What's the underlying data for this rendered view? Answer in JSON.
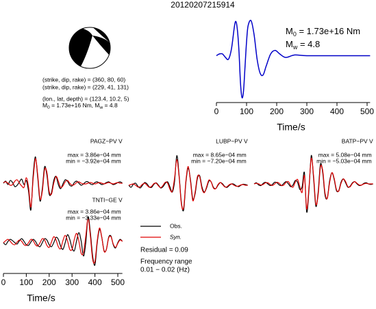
{
  "title": "20120207215914",
  "source_info": {
    "lines": [
      "(strike, dip, rake) = (360, 80, 60)",
      "(strike, dip, rake) = (229, 41, 131)",
      "(lon., lat, depth) = (123.4, 10.2, 5)"
    ],
    "moment_parts": [
      "M",
      "0",
      " = 1.73e+16 Nm, M",
      "w",
      " = 4.8"
    ]
  },
  "residual": "Residual = 0.09",
  "frequency": [
    "Frequency range",
    "0.01 − 0.02 (Hz)"
  ],
  "chart_data": [
    {
      "type": "line",
      "xlabel": "Time/s",
      "xlim": [
        0,
        510
      ],
      "xticks": [
        0,
        100,
        200,
        300,
        400,
        500
      ],
      "ylim": [
        -1.3,
        1.2
      ],
      "annotations": [
        {
          "symbol": "M",
          "subscript": "0",
          "text": " = 1.73e+16 Nm"
        },
        {
          "symbol": "M",
          "subscript": "w",
          "text": " = 4.8"
        }
      ],
      "x": [
        0,
        10,
        20,
        30,
        40,
        50,
        60,
        65,
        70,
        75,
        80,
        85,
        90,
        95,
        100,
        105,
        115,
        125,
        135,
        145,
        155,
        165,
        180,
        195,
        210,
        230,
        260,
        300,
        400,
        510
      ],
      "series": [
        {
          "color": "#0000c8",
          "values": [
            0,
            0.05,
            0.05,
            -0.05,
            -0.1,
            0.2,
            0.85,
            0.97,
            0.7,
            0.1,
            -0.8,
            -1.2,
            -1.0,
            -0.3,
            0.4,
            0.85,
            1.0,
            0.6,
            -0.1,
            -0.5,
            -0.55,
            -0.3,
            0.05,
            0.15,
            0.05,
            -0.05,
            0.02,
            0,
            0,
            0
          ]
        }
      ]
    },
    {
      "type": "line",
      "title": "PAGZ−PV V",
      "annotations": [
        "max = 3.86e−04 mm",
        "min = −3.92e−04 mm"
      ],
      "xlim": [
        0,
        520
      ],
      "ylim": [
        -4.5,
        4.5
      ],
      "x": [
        0,
        10,
        20,
        30,
        40,
        50,
        60,
        70,
        80,
        90,
        100,
        110,
        120,
        130,
        140,
        150,
        160,
        170,
        180,
        190,
        200,
        210,
        220,
        230,
        240,
        250,
        260,
        270,
        280,
        290,
        300,
        310,
        320,
        330,
        340,
        350,
        360,
        370,
        380,
        390,
        400,
        410,
        420,
        430,
        440,
        450,
        460,
        470,
        480,
        490,
        500,
        510,
        520
      ],
      "series": [
        {
          "color": "#000000",
          "values": [
            0.0,
            0.3,
            -0.2,
            0.4,
            0.1,
            -0.5,
            -0.3,
            0.2,
            0.6,
            -0.2,
            0.4,
            -1.2,
            -3.92,
            1.2,
            3.86,
            0.8,
            -2.6,
            -0.8,
            2.4,
            1.2,
            -1.6,
            -1.4,
            0.4,
            1.0,
            -0.2,
            -0.8,
            -0.1,
            0.5,
            0.3,
            -0.3,
            -0.4,
            0.1,
            0.3,
            0.0,
            -0.3,
            -0.1,
            0.2,
            0.2,
            -0.1,
            -0.2,
            0.1,
            0.2,
            0.0,
            -0.2,
            -0.1,
            0.1,
            0.2,
            0.0,
            -0.2,
            -0.1,
            0.1,
            0.2,
            0.0
          ]
        },
        {
          "color": "#e00000",
          "values": [
            0.1,
            0.2,
            0.0,
            -0.3,
            -0.2,
            0.3,
            0.5,
            0.0,
            -0.4,
            -0.6,
            0.8,
            -0.6,
            -3.5,
            0.6,
            3.6,
            1.2,
            -2.3,
            -1.2,
            2.0,
            1.6,
            -1.2,
            -1.6,
            0.0,
            1.0,
            0.3,
            -0.6,
            -0.4,
            0.2,
            0.4,
            0.0,
            -0.3,
            -0.2,
            0.1,
            0.2,
            0.0,
            -0.1,
            -0.1,
            0.0,
            0.1,
            0.0,
            -0.1,
            0.0,
            0.1,
            0.0,
            -0.1,
            0.0,
            0.1,
            0.0,
            -0.1,
            0.0,
            0.1,
            0.0,
            0.0
          ]
        }
      ]
    },
    {
      "type": "line",
      "title": "LUBP−PV V",
      "annotations": [
        "max = 8.65e−04 mm",
        "min = −7.20e−04 mm"
      ],
      "xlim": [
        0,
        520
      ],
      "ylim": [
        -9,
        9
      ],
      "x": [
        0,
        10,
        20,
        30,
        40,
        50,
        60,
        70,
        80,
        90,
        100,
        110,
        120,
        130,
        140,
        150,
        160,
        170,
        180,
        190,
        200,
        210,
        220,
        230,
        240,
        250,
        260,
        270,
        280,
        290,
        300,
        310,
        320,
        330,
        340,
        350,
        360,
        370,
        380,
        390,
        400,
        410,
        420,
        430,
        440,
        450,
        460,
        470,
        480,
        490,
        500,
        510,
        520
      ],
      "series": [
        {
          "color": "#000000",
          "values": [
            0.0,
            -0.6,
            0.3,
            0.6,
            -0.3,
            -0.8,
            0.0,
            0.8,
            0.4,
            -0.5,
            -0.6,
            0.3,
            0.7,
            0.0,
            -0.8,
            -0.4,
            0.6,
            1.0,
            -0.5,
            -2.0,
            1.0,
            8.65,
            3.0,
            -5.0,
            -7.2,
            1.0,
            5.0,
            1.5,
            -4.0,
            -2.5,
            2.0,
            2.8,
            -0.5,
            -2.0,
            -0.8,
            1.2,
            1.0,
            -0.6,
            -1.0,
            0.0,
            0.8,
            0.4,
            -0.4,
            -0.6,
            0.0,
            0.4,
            0.3,
            -0.2,
            -0.4,
            0.0,
            0.3,
            0.2,
            0.0
          ]
        },
        {
          "color": "#e00000",
          "values": [
            0.0,
            0.2,
            0.4,
            0.0,
            -0.5,
            -0.4,
            0.3,
            0.6,
            0.0,
            -0.6,
            -0.3,
            0.5,
            0.6,
            -0.2,
            -0.7,
            0.0,
            0.9,
            0.6,
            -1.2,
            -1.8,
            2.0,
            7.5,
            2.5,
            -5.5,
            -6.5,
            1.5,
            5.5,
            1.0,
            -4.5,
            -2.0,
            2.5,
            2.5,
            -1.0,
            -2.2,
            -0.5,
            1.5,
            1.0,
            -0.8,
            -1.0,
            0.2,
            0.8,
            0.2,
            -0.5,
            -0.4,
            0.2,
            0.4,
            0.0,
            -0.3,
            -0.2,
            0.1,
            0.2,
            0.0,
            0.0
          ]
        }
      ]
    },
    {
      "type": "line",
      "title": "BATP−PV V",
      "annotations": [
        "max = 5.08e−04 mm",
        "min = −5.03e−04 mm"
      ],
      "xlim": [
        0,
        520
      ],
      "ylim": [
        -5.5,
        5.5
      ],
      "x": [
        0,
        10,
        20,
        30,
        40,
        50,
        60,
        70,
        80,
        90,
        100,
        110,
        120,
        130,
        140,
        150,
        160,
        170,
        180,
        190,
        200,
        210,
        220,
        230,
        240,
        250,
        260,
        270,
        280,
        290,
        300,
        310,
        320,
        330,
        340,
        350,
        360,
        370,
        380,
        390,
        400,
        410,
        420,
        430,
        440,
        450,
        460,
        470,
        480,
        490,
        500,
        510,
        520
      ],
      "series": [
        {
          "color": "#000000",
          "values": [
            0.0,
            0.2,
            -0.2,
            -0.3,
            0.1,
            0.3,
            0.0,
            -0.3,
            -0.1,
            0.3,
            0.2,
            -0.2,
            -0.3,
            0.1,
            0.4,
            0.0,
            -0.5,
            -0.2,
            0.6,
            0.3,
            -1.0,
            -0.5,
            2.0,
            -5.03,
            -1.0,
            5.08,
            1.0,
            -4.0,
            -1.5,
            3.5,
            2.0,
            -2.0,
            -2.5,
            0.5,
            2.0,
            0.8,
            -1.2,
            -1.2,
            0.3,
            0.9,
            0.2,
            -0.6,
            -0.4,
            0.2,
            0.4,
            0.0,
            -0.3,
            -0.2,
            0.1,
            0.2,
            0.0,
            -0.1,
            0.0
          ]
        },
        {
          "color": "#e00000",
          "values": [
            0.0,
            0.1,
            0.0,
            -0.2,
            -0.1,
            0.2,
            0.2,
            -0.1,
            -0.3,
            0.0,
            0.3,
            0.1,
            -0.3,
            -0.2,
            0.3,
            0.4,
            -0.3,
            -0.6,
            0.3,
            0.8,
            -0.5,
            -1.5,
            1.5,
            -4.5,
            -0.5,
            4.6,
            1.5,
            -3.6,
            -2.0,
            3.0,
            2.4,
            -1.6,
            -2.6,
            0.2,
            2.0,
            1.0,
            -1.0,
            -1.3,
            0.1,
            0.9,
            0.4,
            -0.5,
            -0.5,
            0.1,
            0.4,
            0.1,
            -0.2,
            -0.2,
            0.0,
            0.1,
            0.0,
            0.0,
            0.0
          ]
        }
      ]
    },
    {
      "type": "line",
      "title": "TNTI−GE V",
      "annotations": [
        "max = 3.86e−04 mm",
        "min = −3.33e−04 mm"
      ],
      "xlabel": "Time/s",
      "xlim": [
        0,
        520
      ],
      "xticks": [
        0,
        100,
        200,
        300,
        400,
        500
      ],
      "ylim": [
        -4.2,
        4.2
      ],
      "x": [
        0,
        10,
        20,
        30,
        40,
        50,
        60,
        70,
        80,
        90,
        100,
        110,
        120,
        130,
        140,
        150,
        160,
        170,
        180,
        190,
        200,
        210,
        220,
        230,
        240,
        250,
        260,
        270,
        280,
        290,
        300,
        310,
        320,
        330,
        340,
        350,
        360,
        370,
        380,
        390,
        400,
        410,
        420,
        430,
        440,
        450,
        460,
        470,
        480,
        490,
        500,
        510,
        520
      ],
      "series": [
        {
          "name": "Obs.",
          "color": "#000000",
          "values": [
            0.0,
            -0.3,
            0.2,
            0.5,
            0.3,
            0.0,
            -0.2,
            0.3,
            0.6,
            0.2,
            -0.3,
            -0.4,
            0.1,
            0.5,
            0.2,
            -0.4,
            -0.6,
            0.0,
            0.6,
            0.4,
            -0.3,
            -0.6,
            0.0,
            0.8,
            0.5,
            -0.5,
            -1.0,
            0.0,
            1.2,
            0.5,
            -0.8,
            -1.2,
            0.3,
            1.5,
            0.2,
            -2.0,
            0.0,
            3.86,
            1.5,
            -2.0,
            -3.33,
            0.0,
            2.0,
            0.8,
            -1.2,
            -1.0,
            0.8,
            1.0,
            -0.3,
            -0.8,
            0.0,
            0.5,
            0.2
          ]
        },
        {
          "name": "Syn.",
          "color": "#e00000",
          "values": [
            0.0,
            0.3,
            0.5,
            0.2,
            -0.2,
            -0.3,
            0.1,
            0.4,
            0.2,
            -0.3,
            -0.4,
            0.0,
            0.5,
            0.3,
            -0.3,
            -0.5,
            0.0,
            0.6,
            0.4,
            -0.4,
            -0.7,
            0.1,
            0.9,
            0.4,
            -0.6,
            -0.9,
            0.3,
            1.1,
            0.3,
            -1.0,
            -1.0,
            0.5,
            1.4,
            0.2,
            -1.6,
            -1.5,
            1.0,
            3.6,
            1.0,
            -2.5,
            -2.8,
            0.3,
            2.2,
            0.8,
            -1.3,
            -1.0,
            0.7,
            0.9,
            -0.2,
            -0.7,
            -0.1,
            0.4,
            0.2
          ]
        }
      ]
    }
  ]
}
